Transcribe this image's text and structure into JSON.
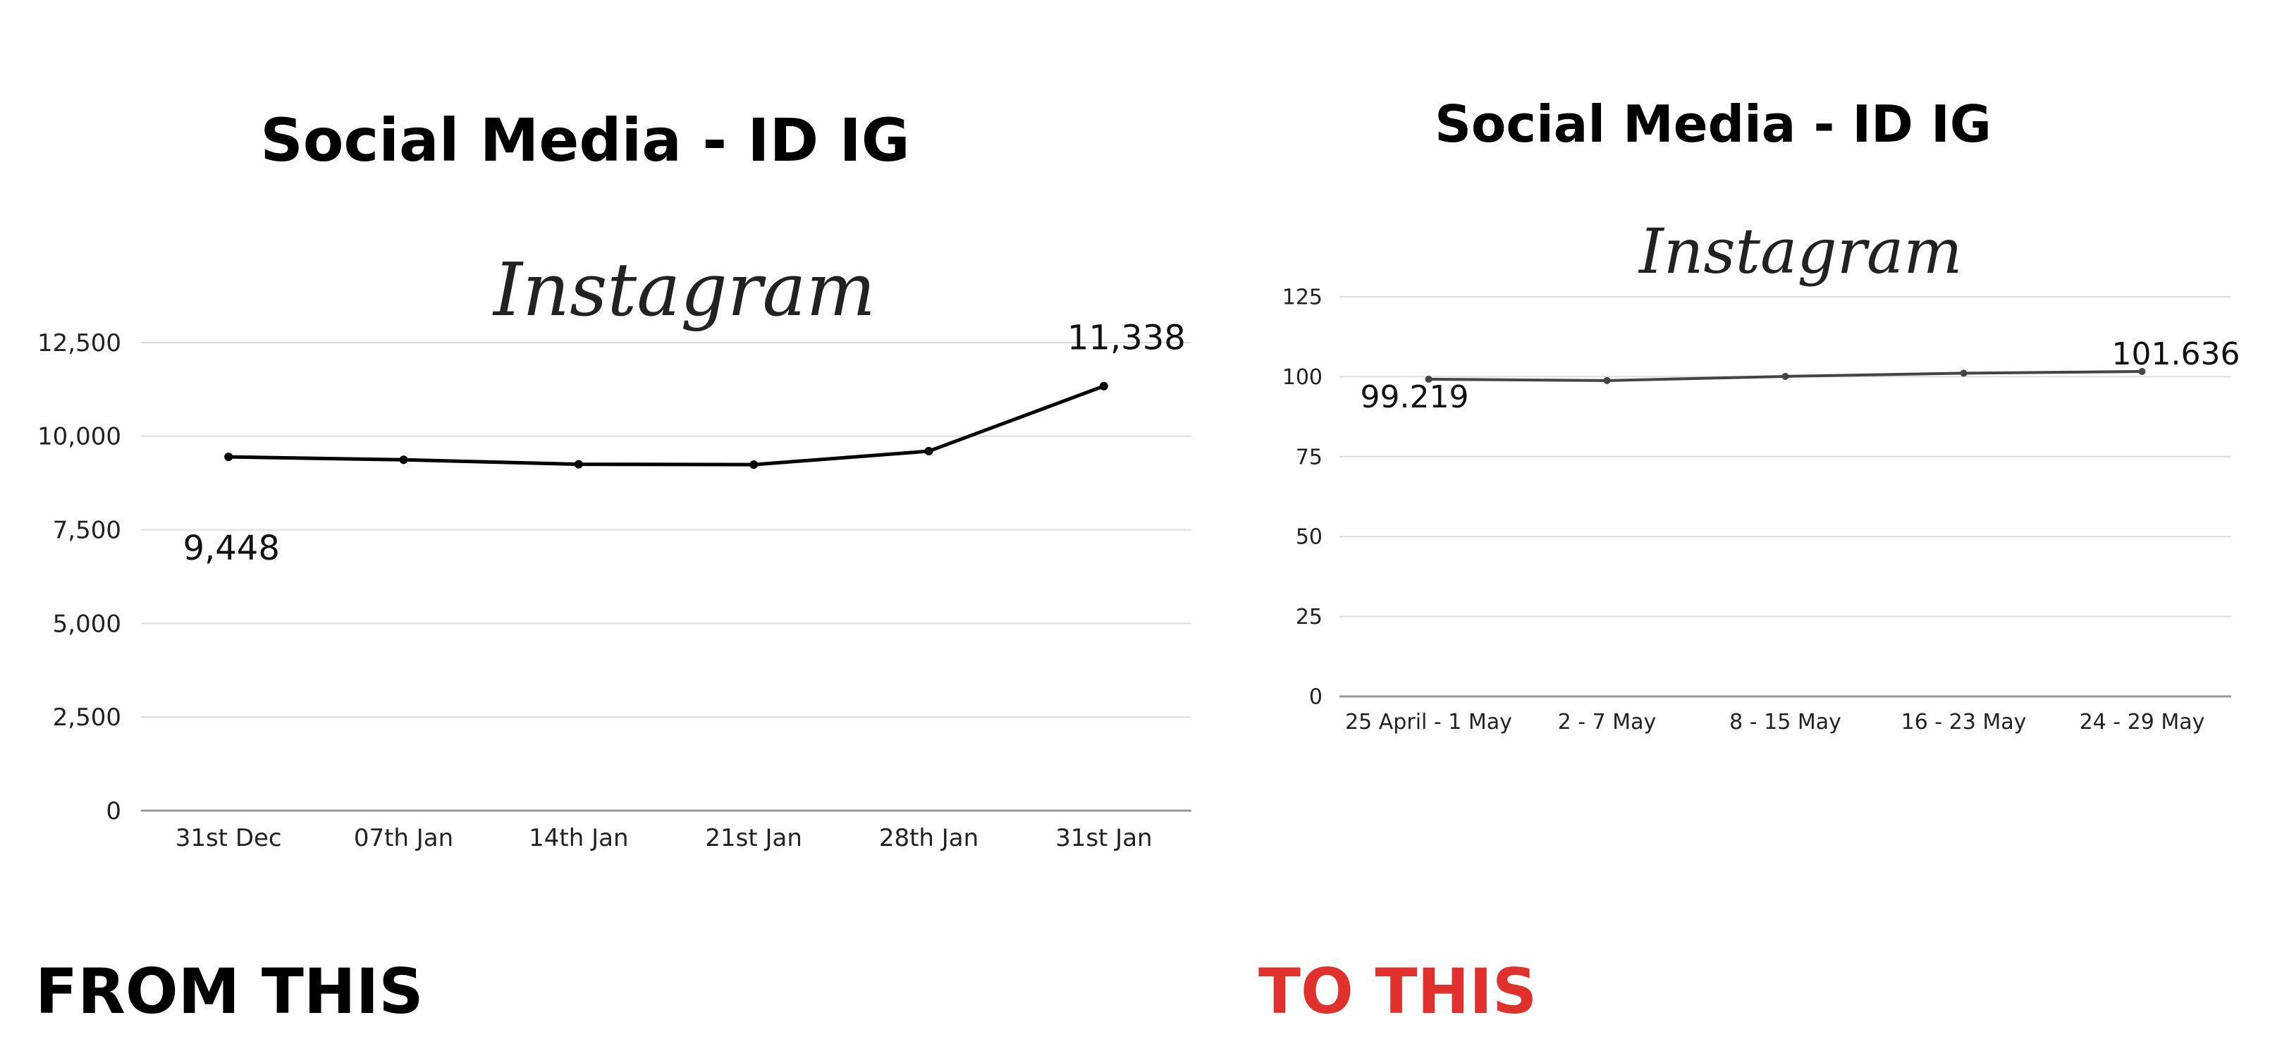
{
  "chart_data": [
    {
      "type": "line",
      "title": "Social Media - ID IG",
      "logo": "Instagram",
      "categories": [
        "31st Dec",
        "07th Jan",
        "14th Jan",
        "21st Jan",
        "28th Jan",
        "31st Jan"
      ],
      "series": [
        {
          "values": [
            9448,
            9370,
            9250,
            9240,
            9600,
            11338
          ]
        }
      ],
      "data_labels": [
        {
          "index": 0,
          "text": "9,448"
        },
        {
          "index": 5,
          "text": "11,338"
        }
      ],
      "ylim": [
        0,
        12500
      ],
      "yticks": [
        0,
        2500,
        5000,
        7500,
        10000,
        12500
      ],
      "ytick_labels": [
        "0",
        "2,500",
        "5,000",
        "7,500",
        "10,000",
        "12,500"
      ],
      "grid": true,
      "line_color": "#000000"
    },
    {
      "type": "line",
      "title": "Social Media - ID IG",
      "logo": "Instagram",
      "categories": [
        "25 April - 1 May",
        "2 - 7 May",
        "8 - 15 May",
        "16 - 23 May",
        "24 - 29 May"
      ],
      "series": [
        {
          "values": [
            99.219,
            98.8,
            100.1,
            101.1,
            101.636
          ]
        }
      ],
      "data_labels": [
        {
          "index": 0,
          "text": "99.219"
        },
        {
          "index": 4,
          "text": "101.636"
        }
      ],
      "ylim": [
        0,
        125
      ],
      "yticks": [
        0,
        25,
        50,
        75,
        100,
        125
      ],
      "ytick_labels": [
        "0",
        "25",
        "50",
        "75",
        "100",
        "125"
      ],
      "grid": true,
      "line_color": "#444444"
    }
  ],
  "captions": {
    "from": "FROM THIS",
    "to": "TO THIS"
  },
  "colors": {
    "to_caption": "#e0312d"
  }
}
